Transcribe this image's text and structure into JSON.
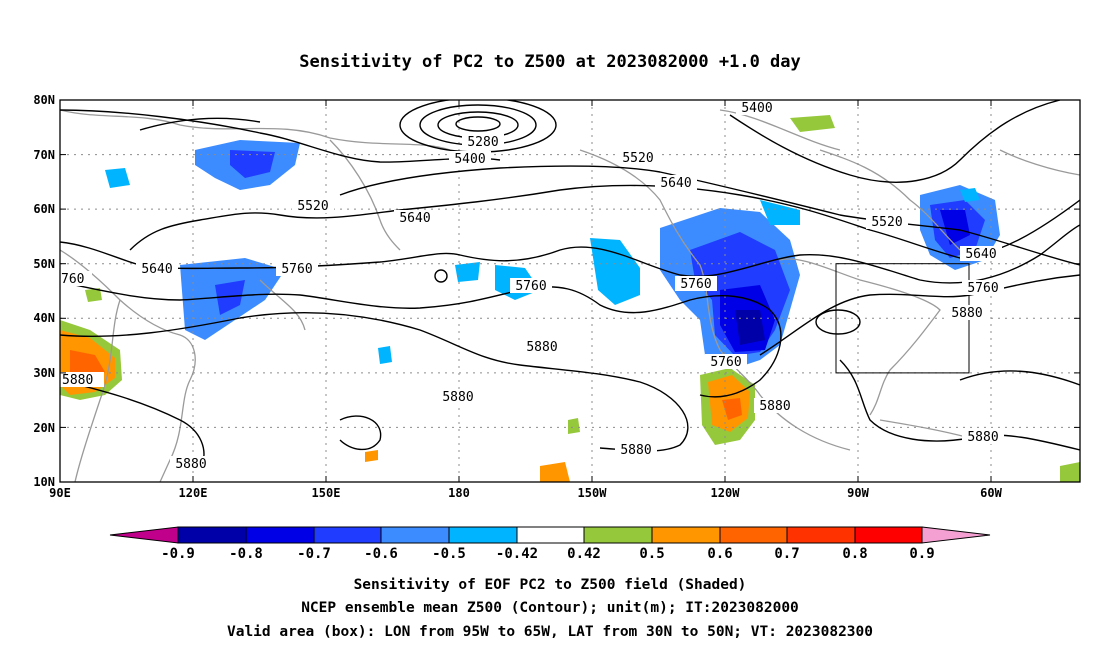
{
  "title": "Sensitivity of PC2 to Z500 at 2023082000 +1.0 day",
  "lat_axis": [
    "80N",
    "70N",
    "60N",
    "50N",
    "40N",
    "30N",
    "20N",
    "10N"
  ],
  "lon_axis": [
    "90E",
    "120E",
    "150E",
    "180",
    "150W",
    "120W",
    "90W",
    "60W"
  ],
  "colorbar": {
    "labels": [
      "-0.9",
      "-0.8",
      "-0.7",
      "-0.6",
      "-0.5",
      "-0.42",
      "0.42",
      "0.5",
      "0.6",
      "0.7",
      "0.8",
      "0.9"
    ],
    "colors": [
      "#c0008a",
      "#0000a8",
      "#0000e6",
      "#1f3cff",
      "#3c8cff",
      "#00b4ff",
      "#ffffff",
      "#96c83c",
      "#ff9600",
      "#ff6400",
      "#ff3200",
      "#ff0000",
      "#f5a0d2"
    ]
  },
  "contour_labels": [
    {
      "text": "5400"
    },
    {
      "text": "5280"
    },
    {
      "text": "5400"
    },
    {
      "text": "5520"
    },
    {
      "text": "5520"
    },
    {
      "text": "5520"
    },
    {
      "text": "5640"
    },
    {
      "text": "5640"
    },
    {
      "text": "5640"
    },
    {
      "text": "5640"
    },
    {
      "text": "760"
    },
    {
      "text": "5760"
    },
    {
      "text": "5760"
    },
    {
      "text": "5760"
    },
    {
      "text": "5760"
    },
    {
      "text": "5760"
    },
    {
      "text": "5880"
    },
    {
      "text": "5880"
    },
    {
      "text": "5880"
    },
    {
      "text": "5880"
    },
    {
      "text": "5880"
    },
    {
      "text": "5880"
    },
    {
      "text": "5880"
    },
    {
      "text": "5880"
    }
  ],
  "valid_box": {
    "lon_from": "95W",
    "lon_to": "65W",
    "lat_from": "30N",
    "lat_to": "50N"
  },
  "captions": [
    "Sensitivity of EOF PC2 to Z500 field (Shaded)",
    "NCEP ensemble mean Z500 (Contour); unit(m); IT:2023082000",
    "Valid area (box): LON from 95W to 65W, LAT from 30N to 50N; VT: 2023082300"
  ]
}
